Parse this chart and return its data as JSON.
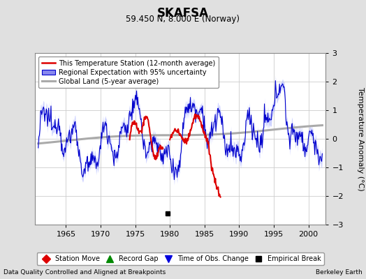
{
  "title": "SKAFSA",
  "subtitle": "59.450 N, 8.000 E (Norway)",
  "ylabel": "Temperature Anomaly (°C)",
  "xlim": [
    1960.5,
    2002.5
  ],
  "ylim": [
    -3,
    3
  ],
  "yticks": [
    -3,
    -2,
    -1,
    0,
    1,
    2,
    3
  ],
  "xticks": [
    1965,
    1970,
    1975,
    1980,
    1985,
    1990,
    1995,
    2000
  ],
  "footer_left": "Data Quality Controlled and Aligned at Breakpoints",
  "footer_right": "Berkeley Earth",
  "bg_color": "#e0e0e0",
  "plot_bg_color": "#ffffff",
  "legend1_labels": [
    "This Temperature Station (12-month average)",
    "Regional Expectation with 95% uncertainty",
    "Global Land (5-year average)"
  ],
  "legend2_labels": [
    "Station Move",
    "Record Gap",
    "Time of Obs. Change",
    "Empirical Break"
  ],
  "legend2_markers": [
    "D",
    "^",
    "v",
    "s"
  ],
  "legend2_colors": [
    "#dd0000",
    "#008800",
    "#0000dd",
    "#000000"
  ],
  "empirical_break_x": 1979.7,
  "empirical_break_y": -2.62,
  "seed": 12345
}
